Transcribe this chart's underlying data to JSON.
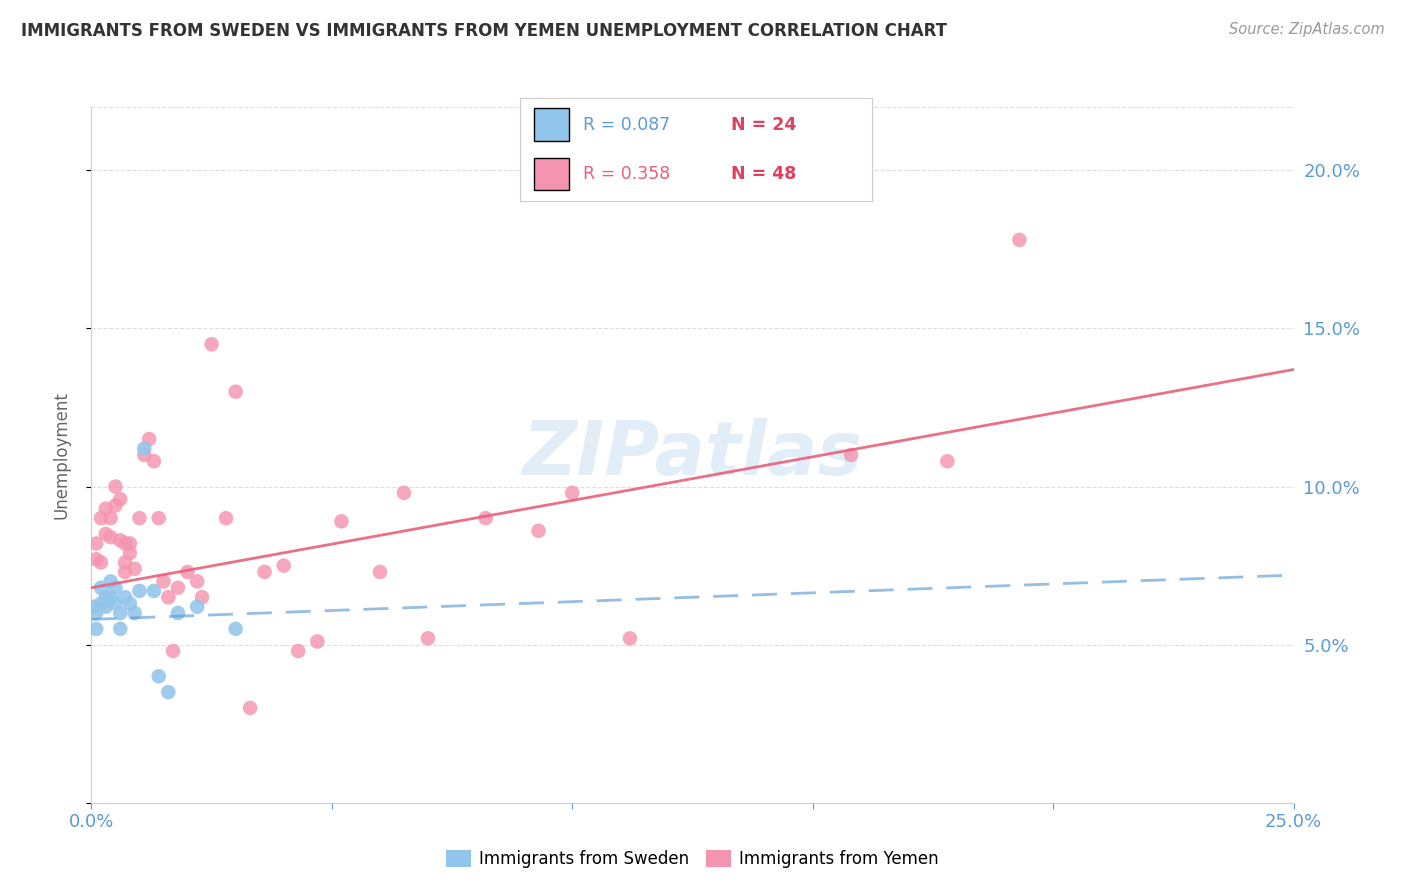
{
  "title": "IMMIGRANTS FROM SWEDEN VS IMMIGRANTS FROM YEMEN UNEMPLOYMENT CORRELATION CHART",
  "source": "Source: ZipAtlas.com",
  "ylabel": "Unemployment",
  "xlim": [
    0.0,
    0.25
  ],
  "ylim": [
    0.0,
    0.22
  ],
  "sweden_color": "#92C5EB",
  "yemen_color": "#F494B0",
  "sweden_line_color": "#5B9BD5",
  "yemen_line_color": "#E8607A",
  "watermark": "ZIPatlas",
  "tick_label_color": "#5B9BD5",
  "grid_color": "#d8d8d8",
  "title_color": "#333333",
  "ylabel_color": "#666666",
  "source_color": "#999999",
  "sweden_trend_x": [
    0.0,
    0.25
  ],
  "sweden_trend_y": [
    0.058,
    0.072
  ],
  "yemen_trend_x": [
    0.0,
    0.25
  ],
  "yemen_trend_y": [
    0.068,
    0.137
  ],
  "sweden_points": [
    [
      0.0005,
      0.062
    ],
    [
      0.001,
      0.06
    ],
    [
      0.001,
      0.055
    ],
    [
      0.002,
      0.063
    ],
    [
      0.002,
      0.068
    ],
    [
      0.003,
      0.062
    ],
    [
      0.003,
      0.065
    ],
    [
      0.004,
      0.07
    ],
    [
      0.004,
      0.065
    ],
    [
      0.005,
      0.068
    ],
    [
      0.005,
      0.063
    ],
    [
      0.006,
      0.06
    ],
    [
      0.006,
      0.055
    ],
    [
      0.007,
      0.065
    ],
    [
      0.008,
      0.063
    ],
    [
      0.009,
      0.06
    ],
    [
      0.01,
      0.067
    ],
    [
      0.011,
      0.112
    ],
    [
      0.013,
      0.067
    ],
    [
      0.014,
      0.04
    ],
    [
      0.016,
      0.035
    ],
    [
      0.018,
      0.06
    ],
    [
      0.022,
      0.062
    ],
    [
      0.03,
      0.055
    ]
  ],
  "yemen_points": [
    [
      0.001,
      0.077
    ],
    [
      0.001,
      0.082
    ],
    [
      0.002,
      0.076
    ],
    [
      0.002,
      0.09
    ],
    [
      0.003,
      0.085
    ],
    [
      0.003,
      0.093
    ],
    [
      0.004,
      0.09
    ],
    [
      0.004,
      0.084
    ],
    [
      0.005,
      0.1
    ],
    [
      0.005,
      0.094
    ],
    [
      0.006,
      0.096
    ],
    [
      0.006,
      0.083
    ],
    [
      0.007,
      0.082
    ],
    [
      0.007,
      0.076
    ],
    [
      0.007,
      0.073
    ],
    [
      0.008,
      0.082
    ],
    [
      0.008,
      0.079
    ],
    [
      0.009,
      0.074
    ],
    [
      0.01,
      0.09
    ],
    [
      0.011,
      0.11
    ],
    [
      0.012,
      0.115
    ],
    [
      0.013,
      0.108
    ],
    [
      0.014,
      0.09
    ],
    [
      0.015,
      0.07
    ],
    [
      0.016,
      0.065
    ],
    [
      0.017,
      0.048
    ],
    [
      0.018,
      0.068
    ],
    [
      0.02,
      0.073
    ],
    [
      0.022,
      0.07
    ],
    [
      0.023,
      0.065
    ],
    [
      0.025,
      0.145
    ],
    [
      0.028,
      0.09
    ],
    [
      0.03,
      0.13
    ],
    [
      0.033,
      0.03
    ],
    [
      0.036,
      0.073
    ],
    [
      0.04,
      0.075
    ],
    [
      0.043,
      0.048
    ],
    [
      0.047,
      0.051
    ],
    [
      0.052,
      0.089
    ],
    [
      0.06,
      0.073
    ],
    [
      0.065,
      0.098
    ],
    [
      0.07,
      0.052
    ],
    [
      0.082,
      0.09
    ],
    [
      0.093,
      0.086
    ],
    [
      0.1,
      0.098
    ],
    [
      0.112,
      0.052
    ],
    [
      0.158,
      0.11
    ],
    [
      0.178,
      0.108
    ],
    [
      0.193,
      0.178
    ]
  ]
}
